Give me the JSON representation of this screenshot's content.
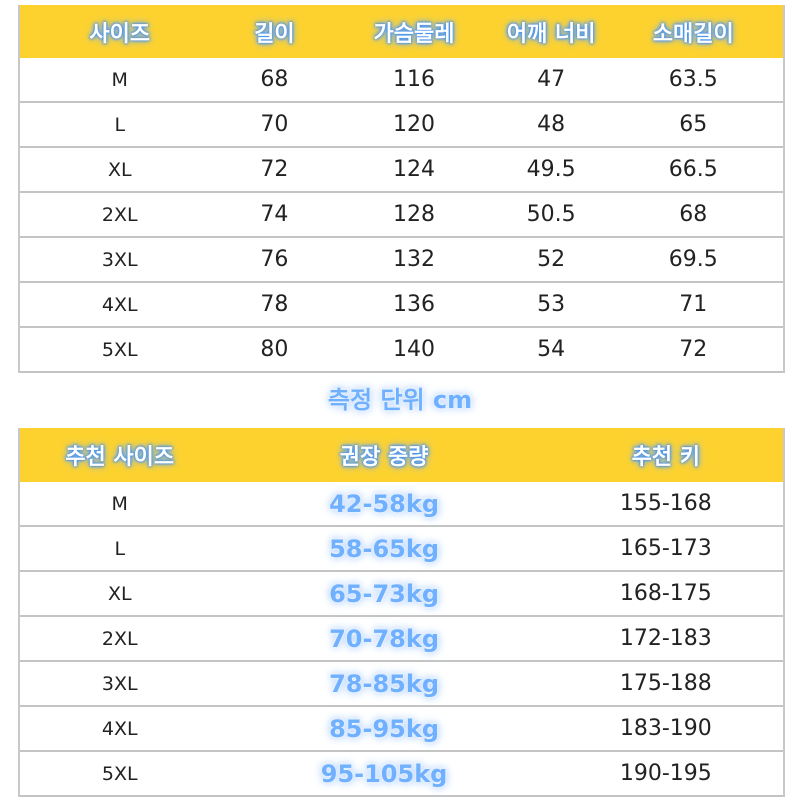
{
  "size_table": {
    "headers": [
      "사이즈",
      "길이",
      "가슴둘레",
      "어깨 너비",
      "소매길이"
    ],
    "rows": [
      [
        "M",
        "68",
        "116",
        "47",
        "63.5"
      ],
      [
        "L",
        "70",
        "120",
        "48",
        "65"
      ],
      [
        "XL",
        "72",
        "124",
        "49.5",
        "66.5"
      ],
      [
        "2XL",
        "74",
        "128",
        "50.5",
        "68"
      ],
      [
        "3XL",
        "76",
        "132",
        "52",
        "69.5"
      ],
      [
        "4XL",
        "78",
        "136",
        "53",
        "71"
      ],
      [
        "5XL",
        "80",
        "140",
        "54",
        "72"
      ]
    ]
  },
  "caption": "측정 단위 cm",
  "recommend_table": {
    "headers": [
      "추천 사이즈",
      "권장 중량",
      "추천 키"
    ],
    "rows": [
      [
        "M",
        "42-58kg",
        "155-168"
      ],
      [
        "L",
        "58-65kg",
        "165-173"
      ],
      [
        "XL",
        "65-73kg",
        "168-175"
      ],
      [
        "2XL",
        "70-78kg",
        "172-183"
      ],
      [
        "3XL",
        "78-85kg",
        "175-188"
      ],
      [
        "4XL",
        "85-95kg",
        "183-190"
      ],
      [
        "5XL",
        "95-105kg",
        "190-195"
      ]
    ]
  },
  "colors": {
    "header": "#fdd22f",
    "glow": "#5aa0ff",
    "border": "#c4c4c4"
  }
}
